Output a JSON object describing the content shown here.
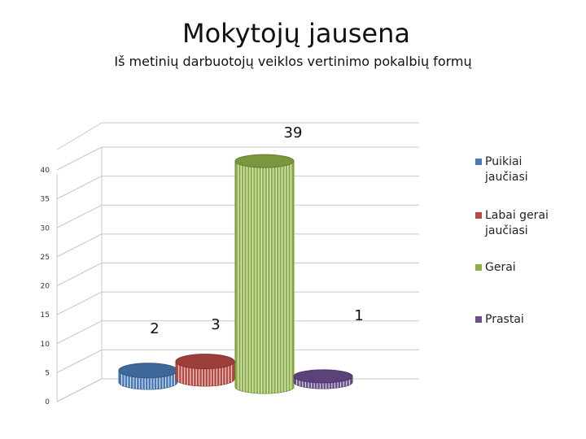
{
  "title": "Mokytojų jausena",
  "subtitle": "Iš metinių darbuotojų veiklos vertinimo pokalbių formų",
  "chart_data": {
    "type": "bar",
    "style": "3d-cylinder",
    "categories": [
      "Puikiai jaučiasi",
      "Labai gerai jaučiasi",
      "Gerai",
      "Prastai"
    ],
    "values": [
      2,
      3,
      39,
      1
    ],
    "data_labels": [
      "2",
      "3",
      "39",
      "1"
    ],
    "colors": [
      "#4a7ab5",
      "#b84a45",
      "#8fb04a",
      "#6b4f8f"
    ],
    "ylim": [
      0,
      40
    ],
    "y_ticks": [
      "0",
      "5",
      "10",
      "15",
      "20",
      "25",
      "30",
      "35",
      "40"
    ],
    "grid": true,
    "legend": [
      {
        "label": "Puikiai jaučiasi",
        "color": "#4a7ab5"
      },
      {
        "label": "Labai gerai jaučiasi",
        "color": "#b84a45"
      },
      {
        "label": "Gerai",
        "color": "#8fb04a"
      },
      {
        "label": "Prastai",
        "color": "#6b4f8f"
      }
    ],
    "legend_position": "right"
  }
}
